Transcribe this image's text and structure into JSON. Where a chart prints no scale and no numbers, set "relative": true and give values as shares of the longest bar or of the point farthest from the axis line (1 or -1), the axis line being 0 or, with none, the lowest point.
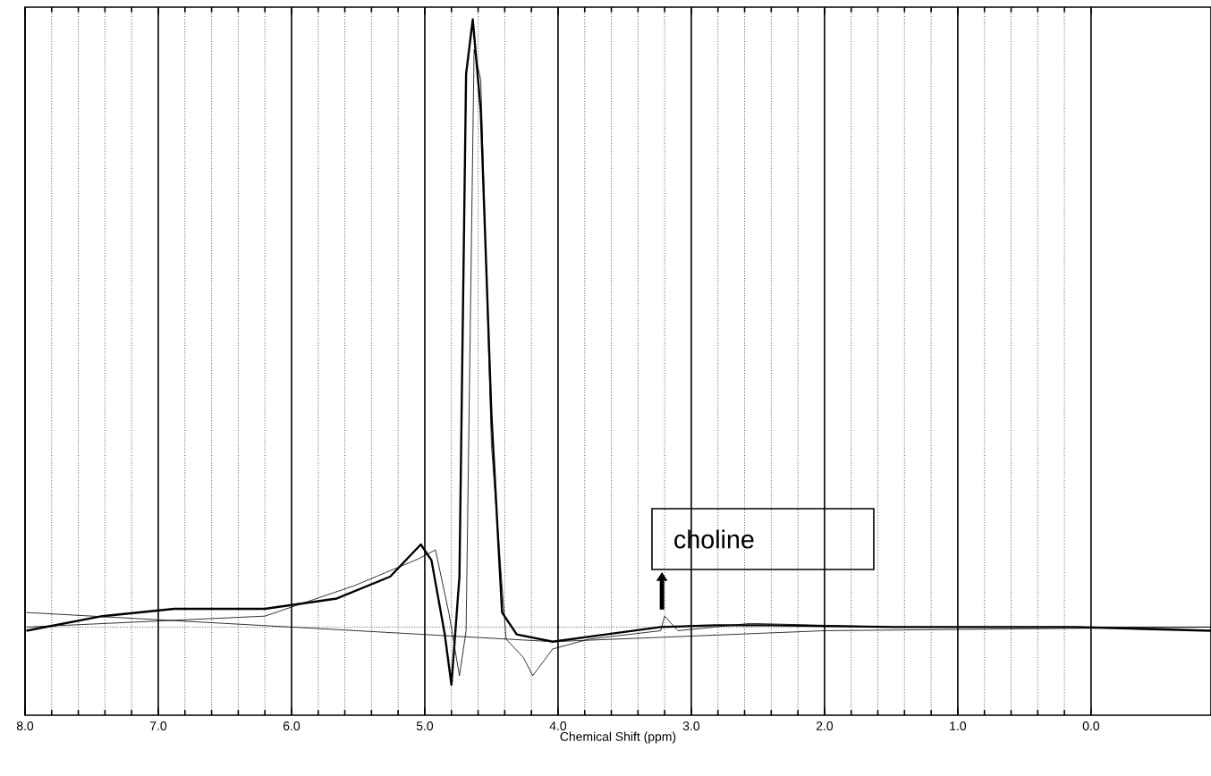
{
  "chart_data": {
    "type": "line",
    "xlabel": "Chemical Shift (ppm)",
    "relative": true,
    "grid": "x",
    "tick_labels": "x",
    "marker": "none",
    "line_style": "solid",
    "xlim": [
      8.0,
      -0.9
    ],
    "xticks": [
      {
        "value": 8,
        "label": "8.0"
      },
      {
        "value": 7,
        "label": "7.0"
      },
      {
        "value": 6,
        "label": "6.0"
      },
      {
        "value": 5,
        "label": "5.0"
      },
      {
        "value": 4,
        "label": "4.0"
      },
      {
        "value": 3,
        "label": "3.0"
      },
      {
        "value": 2,
        "label": "2.0"
      },
      {
        "value": 1,
        "label": "1.0"
      },
      {
        "value": 0,
        "label": "0.0"
      }
    ],
    "series": [
      {
        "color": "#000000",
        "x": [
          7.99,
          7.42,
          6.88,
          6.2,
          5.66,
          5.26,
          5.03,
          4.95,
          4.85,
          4.8,
          4.74,
          4.69,
          4.64,
          4.58,
          4.5,
          4.42,
          4.31,
          4.04,
          3.64,
          3.23,
          2.82,
          2.42,
          1.47,
          0.12,
          -0.9
        ],
        "values": [
          -0.006,
          0.018,
          0.03,
          0.03,
          0.047,
          0.083,
          0.136,
          0.11,
          -0.012,
          -0.095,
          0.083,
          0.91,
          1.0,
          0.85,
          0.35,
          0.024,
          -0.012,
          -0.024,
          -0.012,
          0.0,
          0.003,
          0.003,
          0.0,
          0.0,
          -0.006
        ]
      },
      {
        "color": "#000000",
        "x": [
          7.99,
          6.2,
          5.53,
          5.05,
          4.92,
          4.82,
          4.74,
          4.69,
          4.63,
          4.58,
          4.5,
          4.39,
          4.26,
          4.19,
          4.04,
          3.77,
          3.23,
          3.2,
          3.1,
          2.56,
          1.47,
          -0.9
        ],
        "values": [
          0.0,
          0.018,
          0.068,
          0.112,
          0.127,
          0.024,
          -0.08,
          -0.006,
          0.95,
          0.9,
          0.3,
          -0.02,
          -0.05,
          -0.08,
          -0.036,
          -0.02,
          -0.006,
          0.018,
          -0.006,
          0.006,
          0.0,
          0.0
        ]
      },
      {
        "color": "#000000",
        "x": [
          7.99,
          6.0,
          4.04,
          2.0,
          -0.9
        ],
        "values": [
          0.024,
          0.0,
          -0.024,
          -0.006,
          0.0
        ]
      }
    ],
    "annotations": [
      {
        "text": "choline",
        "x": 3.22,
        "y": 0.02
      }
    ]
  }
}
